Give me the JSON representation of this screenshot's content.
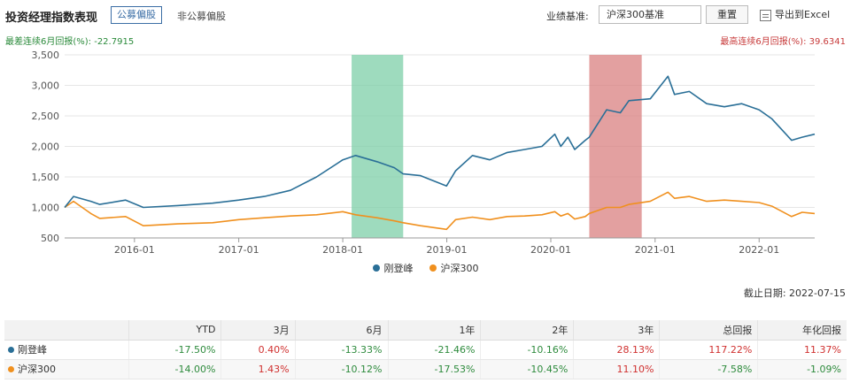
{
  "header": {
    "title": "投资经理指数表现",
    "tab_active": "公募偏股",
    "tab_inactive": "非公募偏股",
    "benchmark_label": "业绩基准:",
    "benchmark_value": "沪深300基准",
    "reset_label": "重置",
    "export_label": "导出到Excel",
    "export_icon": "excel-export-icon"
  },
  "stats": {
    "min_6m_return": "最差连续6月回报(%): -22.7915",
    "max_6m_return": "最高连续6月回报(%): 39.6341"
  },
  "colors": {
    "manager": "#2a6f97",
    "index": "#f0901e",
    "positive": "#d0302f",
    "negative": "#2e8b3d",
    "worst_band": "#7dcfa8",
    "best_band": "#d98080"
  },
  "chart_data": {
    "type": "line",
    "xlabel": "",
    "ylabel": "",
    "ylim": [
      500,
      3500
    ],
    "yticks": [
      500,
      1000,
      1500,
      2000,
      2500,
      3000,
      3500
    ],
    "ytick_labels": [
      "500",
      "1,000",
      "1,500",
      "2,000",
      "2,500",
      "3,000",
      "3,500"
    ],
    "xlim": [
      "2015-05-01",
      "2022-07-15"
    ],
    "xtick_labels": [
      "2016-01",
      "2017-01",
      "2018-01",
      "2019-01",
      "2020-01",
      "2021-01",
      "2022-01"
    ],
    "grid": true,
    "legend_position": "bottom",
    "highlight_bands": [
      {
        "name": "最差连续6月",
        "start": "2018-02-01",
        "end": "2018-08-01"
      },
      {
        "name": "最高连续6月",
        "start": "2020-05-15",
        "end": "2020-11-15"
      }
    ],
    "x": [
      "2015-05-01",
      "2015-06-01",
      "2015-08-01",
      "2015-09-01",
      "2015-12-01",
      "2016-02-01",
      "2016-06-01",
      "2016-10-01",
      "2017-01-01",
      "2017-04-01",
      "2017-07-01",
      "2017-10-01",
      "2018-01-01",
      "2018-02-15",
      "2018-05-01",
      "2018-07-01",
      "2018-08-01",
      "2018-10-01",
      "2018-12-31",
      "2019-02-01",
      "2019-04-01",
      "2019-06-01",
      "2019-08-01",
      "2019-10-01",
      "2019-12-01",
      "2020-01-15",
      "2020-02-05",
      "2020-03-01",
      "2020-03-25",
      "2020-05-01",
      "2020-05-15",
      "2020-07-15",
      "2020-09-01",
      "2020-10-01",
      "2020-12-15",
      "2021-02-15",
      "2021-03-10",
      "2021-05-01",
      "2021-07-01",
      "2021-09-01",
      "2021-11-01",
      "2022-01-01",
      "2022-02-15",
      "2022-04-25",
      "2022-06-01",
      "2022-07-15"
    ],
    "series": [
      {
        "name": "刚登峰",
        "values": [
          1000,
          1180,
          1100,
          1050,
          1120,
          1000,
          1030,
          1070,
          1120,
          1180,
          1280,
          1500,
          1780,
          1850,
          1750,
          1650,
          1550,
          1520,
          1350,
          1600,
          1850,
          1780,
          1900,
          1950,
          2000,
          2200,
          2000,
          2150,
          1950,
          2100,
          2150,
          2600,
          2550,
          2750,
          2780,
          3150,
          2850,
          2900,
          2700,
          2650,
          2700,
          2600,
          2450,
          2100,
          2150,
          2200
        ]
      },
      {
        "name": "沪深300",
        "values": [
          1000,
          1100,
          900,
          820,
          850,
          700,
          730,
          750,
          800,
          830,
          860,
          880,
          930,
          880,
          830,
          780,
          750,
          700,
          640,
          800,
          840,
          800,
          850,
          860,
          880,
          930,
          860,
          900,
          810,
          850,
          900,
          1000,
          1000,
          1050,
          1100,
          1250,
          1150,
          1180,
          1100,
          1120,
          1100,
          1080,
          1020,
          850,
          920,
          900
        ]
      }
    ]
  },
  "legend": {
    "item1": "刚登峰",
    "item2": "沪深300"
  },
  "as_of": "截止日期: 2022-07-15",
  "table": {
    "headers": [
      "",
      "YTD",
      "3月",
      "6月",
      "1年",
      "2年",
      "3年",
      "总回报",
      "年化回报"
    ],
    "rows": [
      {
        "name": "刚登峰",
        "values": [
          "-17.50%",
          "0.40%",
          "-13.33%",
          "-21.46%",
          "-10.16%",
          "28.13%",
          "117.22%",
          "11.37%"
        ]
      },
      {
        "name": "沪深300",
        "values": [
          "-14.00%",
          "1.43%",
          "-10.12%",
          "-17.53%",
          "-10.45%",
          "11.10%",
          "-7.58%",
          "-1.09%"
        ]
      }
    ]
  }
}
